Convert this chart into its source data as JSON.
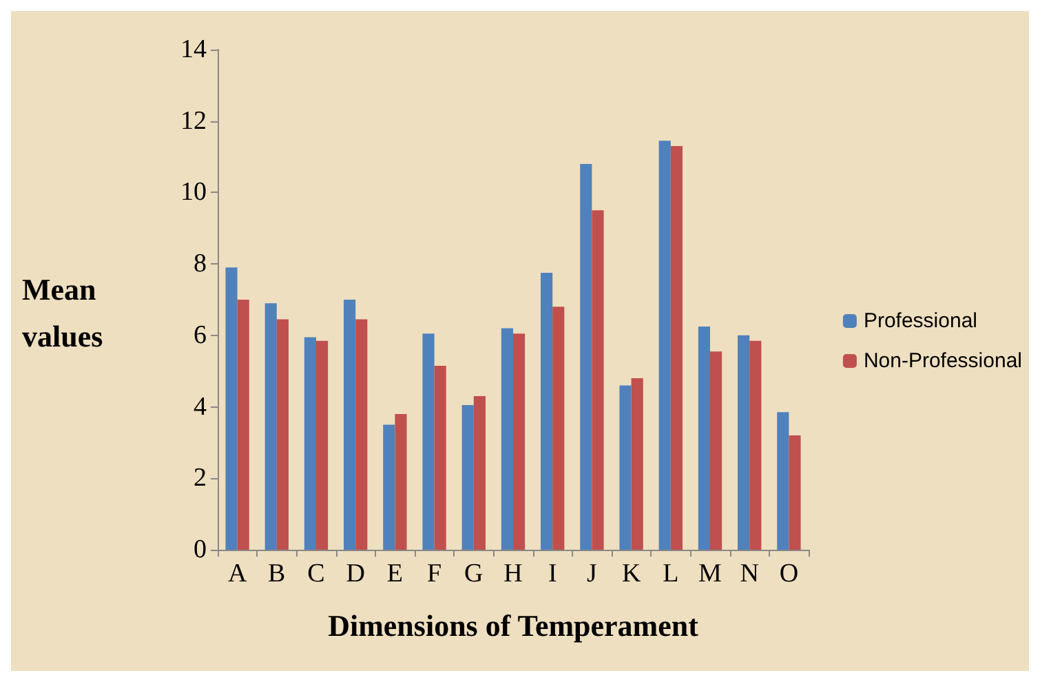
{
  "chart_data": {
    "type": "bar",
    "xlabel": "Dimensions of Temperament",
    "ylabel": "Mean values",
    "categories": [
      "A",
      "B",
      "C",
      "D",
      "E",
      "F",
      "G",
      "H",
      "I",
      "J",
      "K",
      "L",
      "M",
      "N",
      "O"
    ],
    "series": [
      {
        "name": "Professional",
        "color": "#4f81bd",
        "values": [
          7.9,
          6.9,
          5.95,
          7.0,
          3.5,
          6.05,
          4.05,
          6.2,
          7.75,
          10.8,
          4.6,
          11.45,
          6.25,
          6.0,
          3.85
        ]
      },
      {
        "name": "Non-Professional",
        "color": "#c0504d",
        "values": [
          7.0,
          6.45,
          5.85,
          6.45,
          3.8,
          5.15,
          4.3,
          6.05,
          6.8,
          9.5,
          4.8,
          11.3,
          5.55,
          5.85,
          3.2
        ]
      }
    ],
    "ylim": [
      0,
      14
    ],
    "yticks": [
      0,
      2,
      4,
      6,
      8,
      10,
      12,
      14
    ],
    "grid": false,
    "legend": "right"
  }
}
